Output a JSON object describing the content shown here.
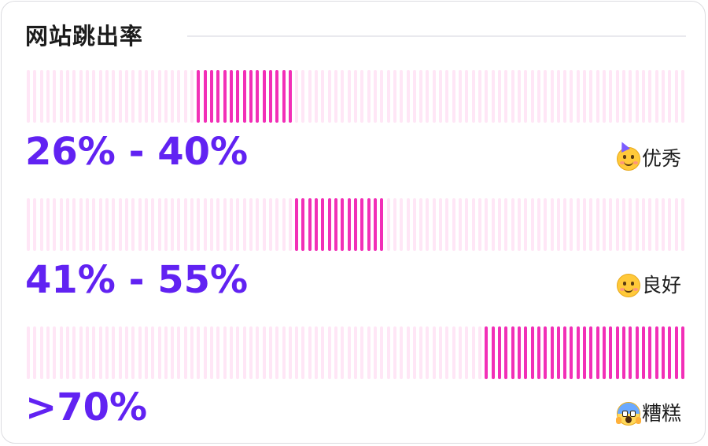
{
  "title": "网站跳出率",
  "colors": {
    "accent_text": "#6122f2",
    "tick_active": "#f22fb7",
    "tick_inactive": "#ffe6f6"
  },
  "chart_data": {
    "type": "bar",
    "title": "网站跳出率",
    "xlim": [
      0,
      100
    ],
    "categories": [
      "26% - 40%",
      "41% - 55%",
      ">70%"
    ],
    "ratings": [
      "优秀",
      "良好",
      "糟糕"
    ],
    "rating_icons": [
      "partying-face-icon",
      "smiling-face-icon",
      "screaming-face-icon"
    ],
    "highlighted_ranges": [
      [
        26,
        40
      ],
      [
        41,
        55
      ],
      [
        70,
        100
      ]
    ]
  }
}
